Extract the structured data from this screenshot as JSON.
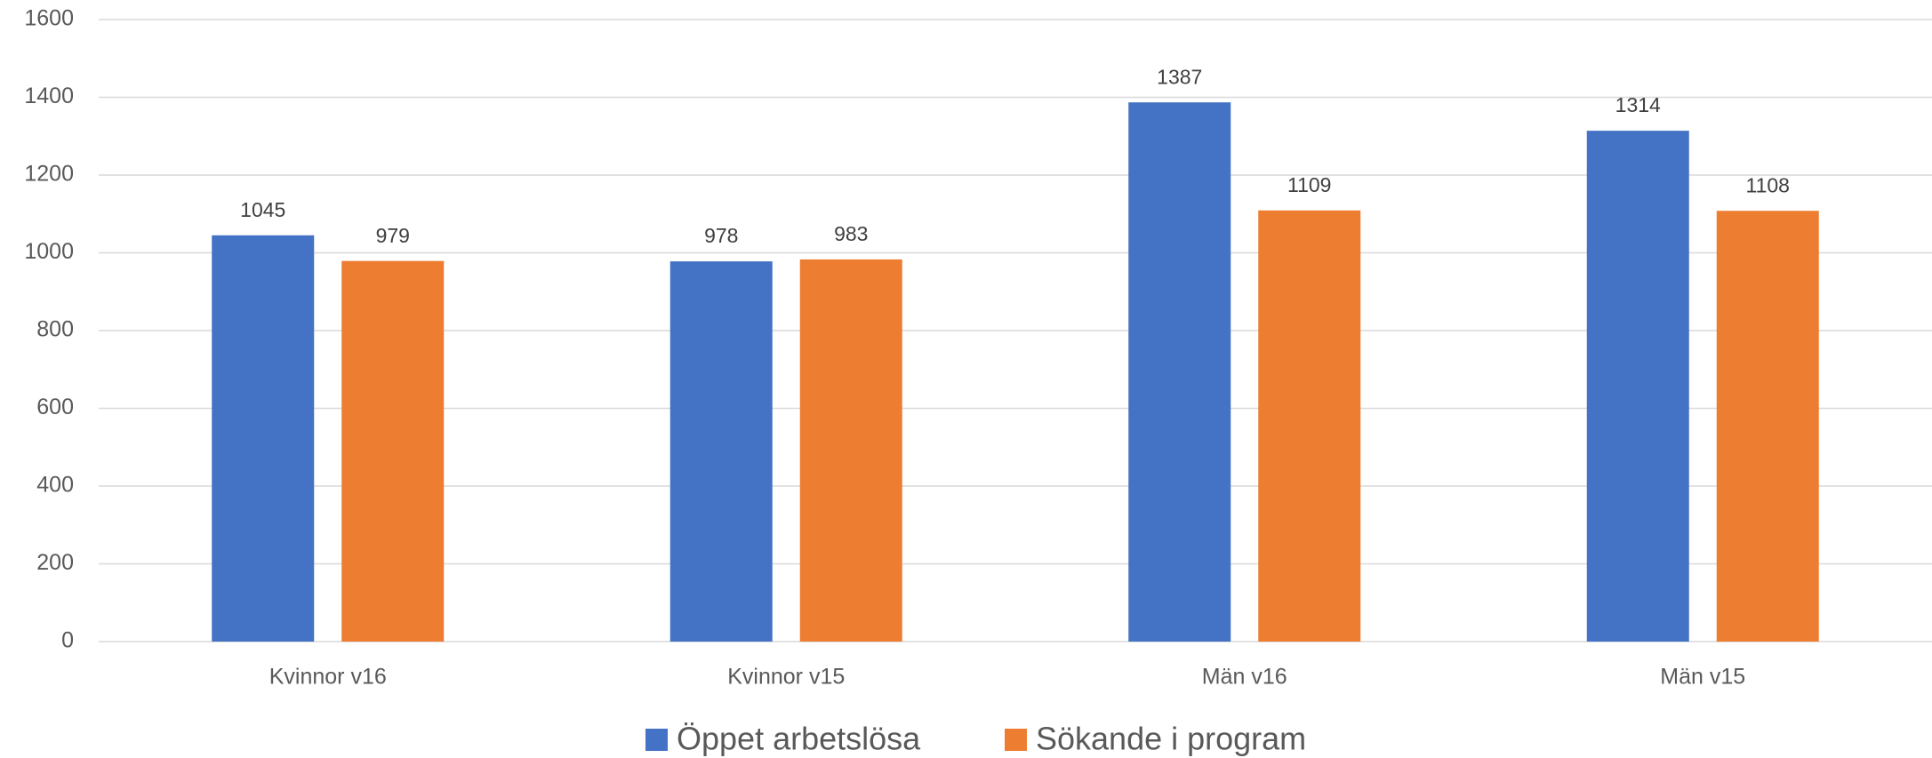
{
  "chart_data": {
    "type": "bar",
    "categories": [
      "Kvinnor v16",
      "Kvinnor v15",
      "Män v16",
      "Män v15"
    ],
    "series": [
      {
        "name": "Öppet arbetslösa",
        "color": "#4472c4",
        "values": [
          1045,
          978,
          1387,
          1314
        ]
      },
      {
        "name": "Sökande i program",
        "color": "#ed7d31",
        "values": [
          979,
          983,
          1109,
          1108
        ]
      }
    ],
    "ylim": [
      0,
      1600
    ],
    "yticks": [
      0,
      200,
      400,
      600,
      800,
      1000,
      1200,
      1400,
      1600
    ],
    "grid": true,
    "legend": "bottom",
    "data_labels": true
  }
}
